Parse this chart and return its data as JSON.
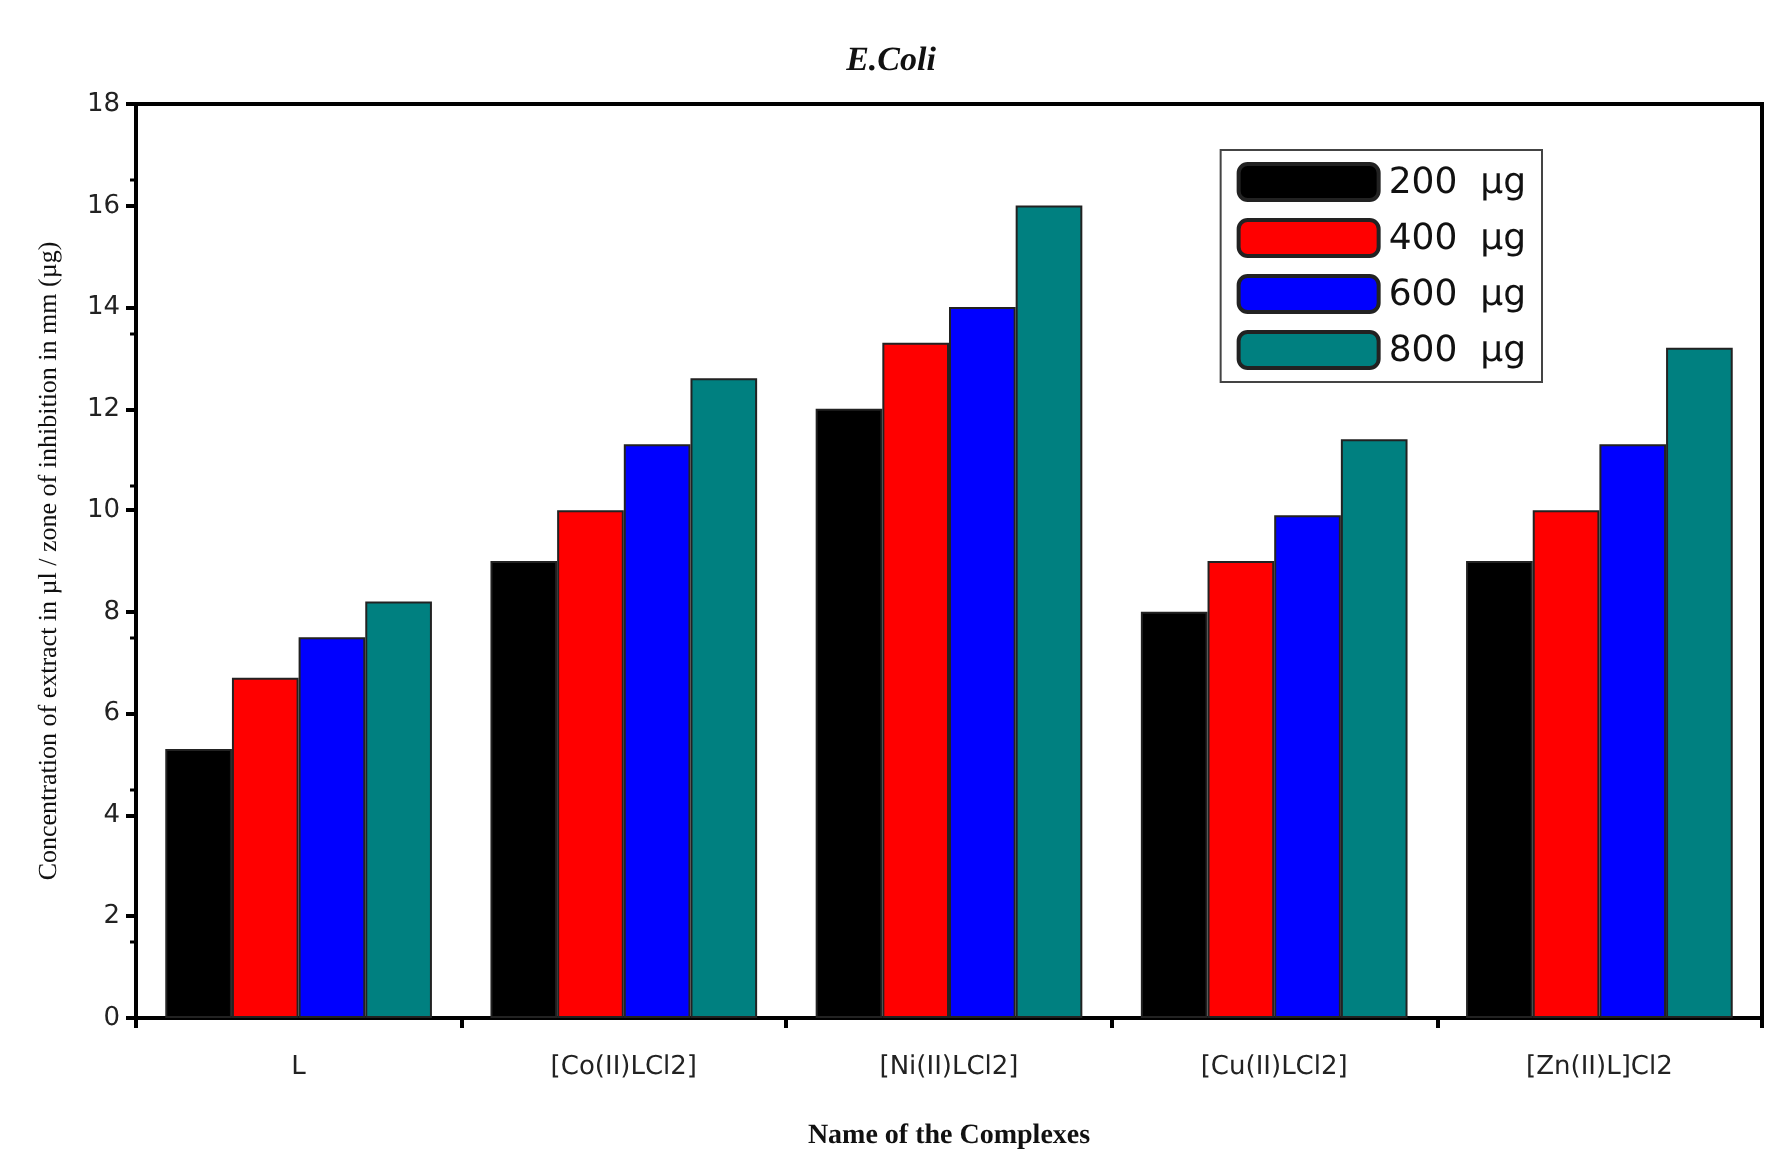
{
  "chart_data": {
    "type": "bar",
    "title": "E.Coli",
    "xlabel": "Name of the Complexes",
    "ylabel": "Concentration of extract in µl / zone of inhibition in mm (µg)",
    "categories": [
      "L",
      "[Co(II)LCl2]",
      "[Ni(II)LCl2]",
      "[Cu(II)LCl2]",
      "[Zn(II)L]Cl2"
    ],
    "series": [
      {
        "name": "200  µg",
        "color": "#000000",
        "values": [
          5.3,
          9.0,
          12.0,
          8.0,
          9.0
        ]
      },
      {
        "name": "400  µg",
        "color": "#ff0000",
        "values": [
          6.7,
          10.0,
          13.3,
          9.0,
          10.0
        ]
      },
      {
        "name": "600  µg",
        "color": "#0000ff",
        "values": [
          7.5,
          11.3,
          14.0,
          9.9,
          11.3
        ]
      },
      {
        "name": "800  µg",
        "color": "#008080",
        "values": [
          8.2,
          12.6,
          16.0,
          11.4,
          13.2
        ]
      }
    ],
    "ylim": [
      0,
      18
    ],
    "yticks": [
      0,
      2,
      4,
      6,
      8,
      10,
      12,
      14,
      16,
      18
    ],
    "grid": false,
    "legend": "top right"
  }
}
